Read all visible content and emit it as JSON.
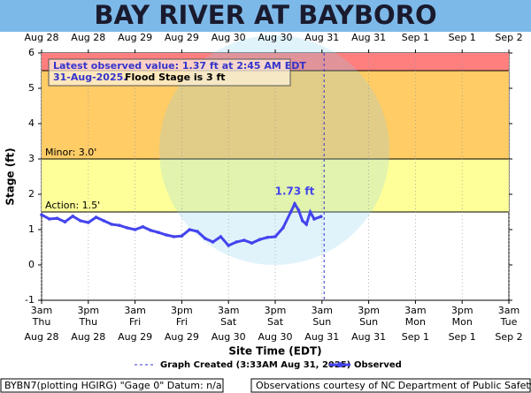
{
  "chart_data": {
    "type": "line",
    "title": "BAY RIVER AT BAYBORO",
    "y_label": "Stage (ft)",
    "x_label": "Site Time (EDT)",
    "xlim": [
      0,
      120
    ],
    "xticks": [
      {
        "value": 0,
        "label": "3am"
      },
      {
        "value": 12,
        "label": "3pm"
      },
      {
        "value": 24,
        "label": "3am"
      },
      {
        "value": 36,
        "label": "3pm"
      },
      {
        "value": 48,
        "label": "3am"
      },
      {
        "value": 60,
        "label": "3pm"
      },
      {
        "value": 72,
        "label": "3am"
      },
      {
        "value": 84,
        "label": "3pm"
      },
      {
        "value": 96,
        "label": "3am"
      },
      {
        "value": 108,
        "label": "3pm"
      },
      {
        "value": 120,
        "label": "3am"
      }
    ],
    "x_day_labels": [
      "Thu",
      "Thu",
      "Fri",
      "Fri",
      "Sat",
      "Sat",
      "Sun",
      "Sun",
      "Mon",
      "Mon",
      "Tue"
    ],
    "x_date_labels": [
      "Aug 28",
      "Aug 28",
      "Aug 29",
      "Aug 29",
      "Aug 30",
      "Aug 30",
      "Aug 31",
      "Aug 31",
      "Sep  1",
      "Sep  1",
      "Sep  2"
    ],
    "ylim": [
      -1,
      6
    ],
    "yticks": [
      -1,
      0,
      1,
      2,
      3,
      4,
      5,
      6
    ],
    "flood_categories": [
      {
        "label": "Action: 1.5'",
        "value": 1.5,
        "color": "#ffff99"
      },
      {
        "label": "Minor: 3.0'",
        "value": 3,
        "color": "#ffcc66"
      },
      {
        "value": 5.5,
        "color": "#ff7f7f"
      }
    ],
    "info_lines": [
      "Latest observed value: 1.37 ft at 2:45 AM EDT",
      "31-Aug-2025.",
      "Flood Stage is 3 ft"
    ],
    "created": {
      "x": 72.55,
      "label": "Graph Created (3:33AM Aug 31, 2025)",
      "color": "#3333cc"
    },
    "series": [
      {
        "name": "Observed",
        "color": "#4444ee",
        "x": [
          0,
          2,
          4,
          6,
          8,
          10,
          12,
          14,
          16,
          18,
          20,
          22,
          24,
          26,
          28,
          30,
          32,
          34,
          36,
          38,
          40,
          42,
          44,
          46,
          48,
          50,
          52,
          54,
          56,
          58,
          60,
          62,
          64,
          65,
          66,
          67,
          68,
          69,
          70,
          71.75
        ],
        "values": [
          1.42,
          1.3,
          1.32,
          1.22,
          1.38,
          1.25,
          1.2,
          1.35,
          1.25,
          1.15,
          1.12,
          1.05,
          1.0,
          1.08,
          0.98,
          0.92,
          0.85,
          0.8,
          0.82,
          1.0,
          0.95,
          0.75,
          0.65,
          0.8,
          0.55,
          0.65,
          0.7,
          0.62,
          0.72,
          0.78,
          0.8,
          1.05,
          1.5,
          1.73,
          1.55,
          1.25,
          1.15,
          1.5,
          1.3,
          1.37
        ],
        "value_labels": [
          null,
          null,
          null,
          null,
          null,
          null,
          null,
          null,
          null,
          null,
          null,
          null,
          null,
          null,
          null,
          null,
          null,
          null,
          null,
          null,
          null,
          null,
          null,
          null,
          null,
          null,
          null,
          null,
          null,
          null,
          null,
          null,
          null,
          "1.73 ft",
          null,
          null,
          null,
          null,
          null,
          null
        ]
      }
    ],
    "footer_left": "BYBN7(plotting HGIRG) \"Gage 0\" Datum: n/a",
    "footer_right": "Observations courtesy of NC Department of Public Safety"
  }
}
